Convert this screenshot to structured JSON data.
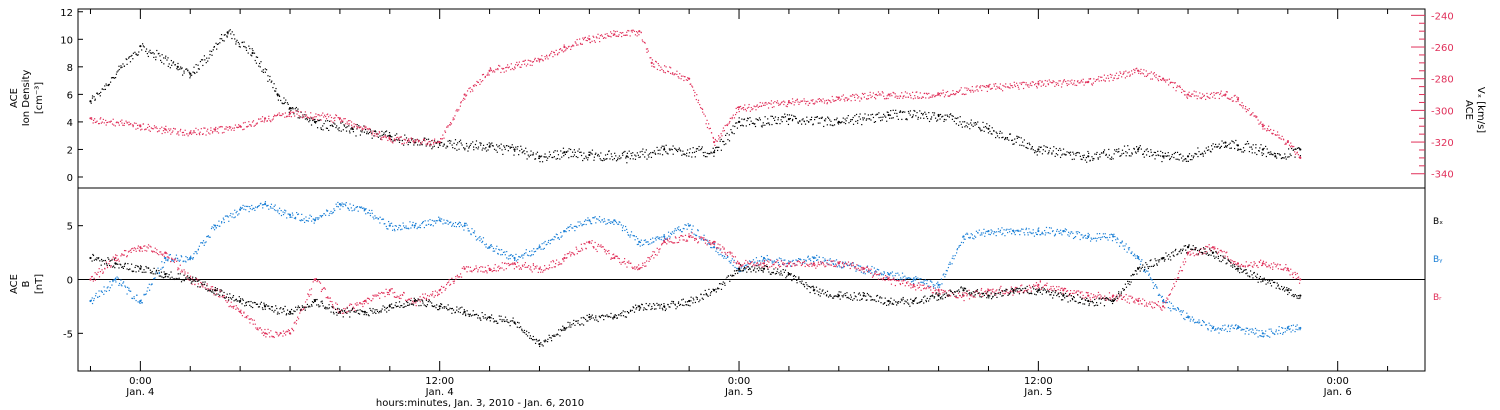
{
  "colors": {
    "black": "#000000",
    "pink": "#e0305a",
    "blue": "#1a7fd6"
  },
  "chart_data": [
    {
      "type": "scatter",
      "panel": "top",
      "ylabel_lines": [
        "ACE",
        "Ion Density"
      ],
      "ylabel_unit": "[cm⁻³]",
      "ylim": [
        -0.8,
        12.2
      ],
      "yticks": [
        0,
        2,
        4,
        6,
        8,
        10,
        12
      ],
      "y2label_lines": [
        "ACE"
      ],
      "y2label_unit": "Vₓ [km/s]",
      "y2lim": [
        -349,
        -236
      ],
      "y2ticks": [
        -340,
        -320,
        -300,
        -280,
        -260,
        -240
      ],
      "series": [
        {
          "color": "black",
          "axis": "left",
          "x_hours": [
            -2,
            0,
            1.5,
            2,
            3.5,
            4.5,
            5.5,
            6,
            7,
            8.5,
            10,
            11,
            12,
            14,
            15,
            16,
            17,
            18,
            19.5,
            21,
            23,
            24,
            26,
            28,
            30,
            32,
            34,
            36,
            38,
            40,
            41,
            42,
            43.5,
            44,
            45,
            45.5,
            46.5
          ],
          "y": [
            5.5,
            9.5,
            8,
            7.5,
            10.5,
            9,
            6,
            5,
            4,
            3.5,
            3,
            2.5,
            2.5,
            2.2,
            2,
            1.5,
            1.8,
            1.6,
            1.5,
            2,
            1.8,
            4,
            4.2,
            4,
            4.5,
            4.5,
            3.5,
            2,
            1.5,
            2,
            1.5,
            1.5,
            2.5,
            2.3,
            2,
            1.5,
            2
          ]
        },
        {
          "color": "pink",
          "axis": "right",
          "x_hours": [
            -2,
            0,
            1,
            2,
            3,
            4,
            5,
            6,
            8,
            10,
            12,
            13,
            14,
            16,
            17,
            18,
            19,
            20,
            20.5,
            22,
            23,
            24,
            26,
            28,
            30,
            32,
            34,
            36,
            38,
            40,
            41,
            42,
            43.5,
            44,
            45,
            46,
            46.5
          ],
          "y": [
            -305,
            -310,
            -312,
            -314,
            -312,
            -310,
            -305,
            -302,
            -305,
            -318,
            -320,
            -290,
            -275,
            -268,
            -260,
            -255,
            -252,
            -250,
            -270,
            -280,
            -320,
            -298,
            -295,
            -292,
            -290,
            -290,
            -285,
            -283,
            -282,
            -275,
            -280,
            -290,
            -290,
            -293,
            -310,
            -320,
            -330
          ]
        }
      ]
    },
    {
      "type": "scatter",
      "panel": "bottom",
      "ylabel_lines": [
        "ACE",
        "B"
      ],
      "ylabel_unit": "[nT]",
      "ylim": [
        -8.5,
        8.5
      ],
      "yticks": [
        -5,
        0,
        5
      ],
      "zero_line": true,
      "series": [
        {
          "name": "Bₓ",
          "color": "black",
          "x_hours": [
            -2,
            -1,
            0,
            1,
            2,
            3,
            4,
            5,
            6,
            7,
            8,
            9,
            10,
            11,
            12,
            13,
            14,
            15,
            16,
            17,
            18,
            19,
            20,
            21,
            22,
            23,
            24,
            25,
            26,
            27,
            28,
            29,
            30,
            31,
            32,
            33,
            34,
            35,
            36,
            37,
            38,
            39,
            40,
            41,
            42,
            43,
            44,
            45,
            46,
            46.5
          ],
          "y": [
            2,
            1.5,
            1,
            0.5,
            0,
            -1,
            -2,
            -2.5,
            -3,
            -2,
            -3,
            -3,
            -2.5,
            -2,
            -2.5,
            -3,
            -3.5,
            -4,
            -6,
            -4.5,
            -3.5,
            -3.5,
            -2.5,
            -2.5,
            -2,
            -1,
            1,
            1,
            0.5,
            -1,
            -1.5,
            -1.5,
            -2,
            -2,
            -1.5,
            -1,
            -1.5,
            -1,
            -1,
            -1.5,
            -2,
            -2,
            1,
            2,
            3,
            2.5,
            1,
            0,
            -1,
            -1.5
          ]
        },
        {
          "name": "Bᵧ",
          "color": "blue",
          "x_hours": [
            -2,
            -1,
            0,
            1,
            2,
            3,
            4,
            5,
            6,
            7,
            8,
            9,
            10,
            11,
            12,
            13,
            14,
            15,
            16,
            17,
            18,
            19,
            20,
            21,
            22,
            23,
            24,
            25,
            26,
            27,
            28,
            29,
            30,
            31,
            32,
            33,
            34,
            35,
            36,
            37,
            38,
            39,
            40,
            41,
            42,
            43,
            44,
            45,
            46,
            46.5
          ],
          "y": [
            -2,
            0,
            -2,
            2,
            2,
            5,
            6.5,
            7,
            6,
            5.5,
            7,
            6.5,
            5,
            5,
            5.5,
            5,
            3,
            2,
            3,
            4.5,
            5.5,
            5.5,
            3.5,
            4,
            5,
            3,
            1,
            2,
            1.5,
            2,
            1.5,
            1,
            0.5,
            0,
            -0.5,
            4,
            4.5,
            4.5,
            4.5,
            4.5,
            4,
            4,
            2,
            -2,
            -3.5,
            -4.5,
            -4.5,
            -5,
            -4.5,
            -4.5
          ]
        },
        {
          "name": "Bᵣ",
          "color": "pink",
          "x_hours": [
            -2,
            -1,
            0,
            1,
            2,
            3,
            4,
            5,
            6,
            7,
            8,
            9,
            10,
            11,
            12,
            13,
            14,
            15,
            16,
            17,
            18,
            19,
            20,
            21,
            22,
            23,
            24,
            25,
            26,
            27,
            28,
            29,
            30,
            31,
            32,
            33,
            34,
            35,
            36,
            37,
            38,
            39,
            40,
            41,
            42,
            43,
            44,
            45,
            46,
            46.5
          ],
          "y": [
            0,
            2,
            3,
            2.5,
            0,
            -1,
            -3,
            -5,
            -5,
            0,
            -3,
            -2,
            -1,
            -2,
            -1,
            1,
            1,
            1.5,
            1,
            2,
            3.5,
            2,
            1,
            3.5,
            4,
            3.5,
            1.5,
            1.5,
            1.5,
            1.5,
            1.5,
            1,
            0,
            -0.5,
            -1,
            -1.5,
            -1,
            -1,
            -0.5,
            -1,
            -1.5,
            -1.5,
            -2,
            -2.5,
            2.5,
            3,
            1.5,
            1.5,
            1,
            0
          ]
        }
      ]
    }
  ],
  "x_axis": {
    "range_hours": [
      -2.5,
      51.5
    ],
    "major_ticks": [
      {
        "hour": 0,
        "time": "0:00",
        "date": "Jan. 4"
      },
      {
        "hour": 12,
        "time": "12:00",
        "date": "Jan. 4"
      },
      {
        "hour": 24,
        "time": "0:00",
        "date": "Jan. 5"
      },
      {
        "hour": 36,
        "time": "12:00",
        "date": "Jan. 5"
      },
      {
        "hour": 48,
        "time": "0:00",
        "date": "Jan. 6"
      }
    ],
    "title": "hours:minutes, Jan.  3, 2010 - Jan.  6, 2010"
  }
}
